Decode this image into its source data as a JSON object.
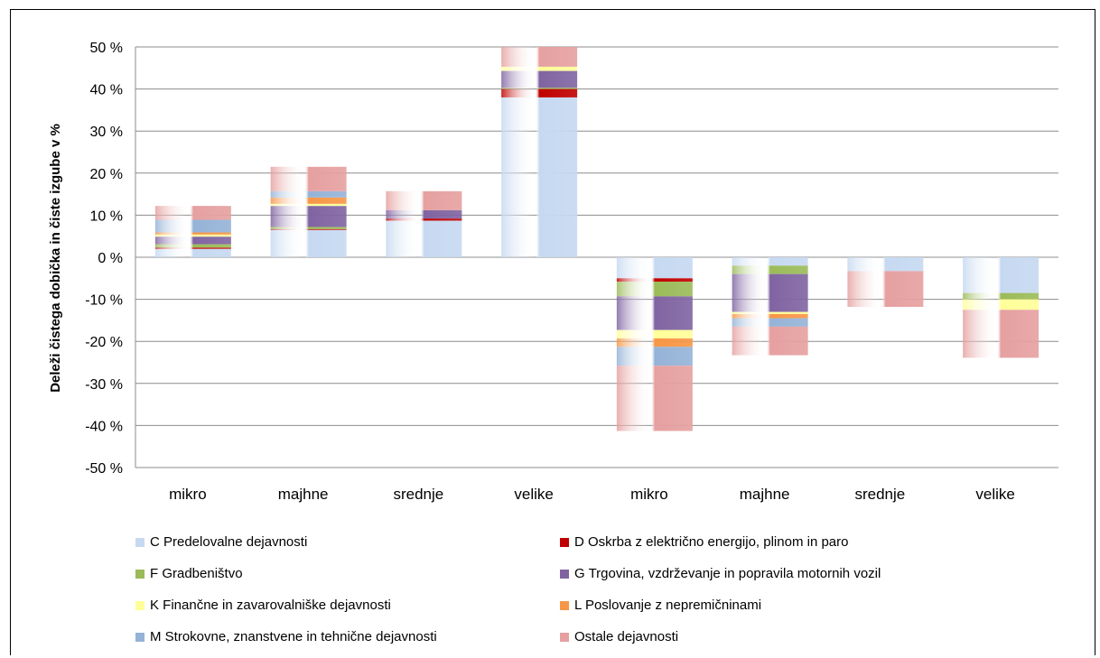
{
  "chart_data": {
    "type": "bar",
    "stacked": true,
    "ylabel": "Deleži čistega dobička in čiste izgube v %",
    "ylim": [
      -50,
      50
    ],
    "y_ticks": [
      "50 %",
      "40 %",
      "30 %",
      "20 %",
      "10 %",
      "0 %",
      "-10 %",
      "-20 %",
      "-30 %",
      "-40 %",
      "-50 %"
    ],
    "y_tick_values": [
      50,
      40,
      30,
      20,
      10,
      0,
      -10,
      -20,
      -30,
      -40,
      -50
    ],
    "categories": [
      "mikro",
      "majhne",
      "srednje",
      "velike",
      "mikro",
      "majhne",
      "srednje",
      "velike"
    ],
    "grid": true,
    "legend_position": "bottom",
    "series": [
      {
        "name": "C Predelovalne dejavnosti",
        "color": "#c6d9f1",
        "values": [
          2.0,
          6.5,
          8.7,
          38.0,
          -5.0,
          -2.0,
          -3.3,
          -8.5
        ]
      },
      {
        "name": "D Oskrba z električno energijo, plinom in paro",
        "color": "#c00000",
        "values": [
          0.3,
          0.2,
          0.5,
          2.0,
          -0.8,
          0,
          0,
          0
        ]
      },
      {
        "name": "F Gradbeništvo",
        "color": "#9bbb59",
        "values": [
          0.8,
          0.5,
          0,
          0.3,
          -3.5,
          -2.0,
          0,
          -1.5
        ]
      },
      {
        "name": "G Trgovina, vzdrževanje in popravila motornih vozil",
        "color": "#8064a2",
        "values": [
          1.8,
          5.0,
          2.0,
          4.0,
          -8.0,
          -9.0,
          0,
          0
        ]
      },
      {
        "name": "K Finančne in zavarovalniške dejavnosti",
        "color": "#ffff99",
        "values": [
          0.5,
          0.5,
          0,
          1.0,
          -2.0,
          -0.5,
          0,
          -2.5
        ]
      },
      {
        "name": "L Poslovanje z nepremičninami",
        "color": "#f79646",
        "values": [
          0.5,
          1.5,
          0,
          0,
          -2.0,
          -1.0,
          0,
          0
        ]
      },
      {
        "name": "M Strokovne, znanstvene in tehnične dejavnosti",
        "color": "#95b3d7",
        "values": [
          3.0,
          1.5,
          0,
          0,
          -4.5,
          -2.0,
          0,
          0
        ]
      },
      {
        "name": "Ostale dejavnosti",
        "color": "#e6a0a0",
        "values": [
          3.3,
          5.8,
          4.5,
          4.7,
          -15.5,
          -6.8,
          -8.5,
          -11.4
        ]
      }
    ]
  }
}
